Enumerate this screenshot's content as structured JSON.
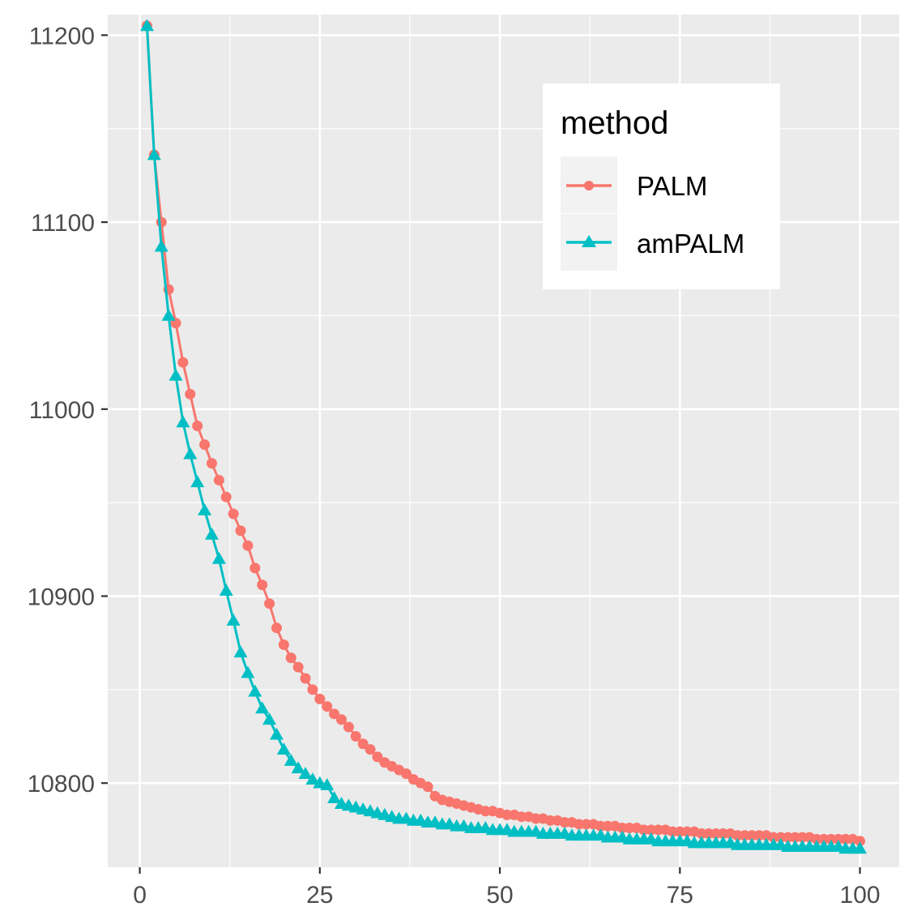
{
  "chart_data": {
    "type": "line",
    "title": "",
    "xlabel": "",
    "ylabel": "",
    "xlim": [
      -4.45,
      105.45
    ],
    "ylim": [
      10755,
      11211
    ],
    "x_ticks": [
      0,
      25,
      50,
      75,
      100
    ],
    "x_tick_labels": [
      "0",
      "25",
      "50",
      "75",
      "100"
    ],
    "y_ticks": [
      10800,
      10900,
      11000,
      11100,
      11200
    ],
    "y_tick_labels": [
      "10800",
      "10900",
      "11000",
      "11100",
      "11200"
    ],
    "grid": true,
    "legend": {
      "title": "method",
      "placement": "top-right"
    },
    "series": [
      {
        "name": "PALM",
        "color": "#F8766D",
        "marker": "circle",
        "x": [
          1,
          2,
          3,
          4,
          5,
          6,
          7,
          8,
          9,
          10,
          11,
          12,
          13,
          14,
          15,
          16,
          17,
          18,
          19,
          20,
          21,
          22,
          23,
          24,
          25,
          26,
          27,
          28,
          29,
          30,
          31,
          32,
          33,
          34,
          35,
          36,
          37,
          38,
          39,
          40,
          41,
          42,
          43,
          44,
          45,
          46,
          47,
          48,
          49,
          50,
          51,
          52,
          53,
          54,
          55,
          56,
          57,
          58,
          59,
          60,
          61,
          62,
          63,
          64,
          65,
          66,
          67,
          68,
          69,
          70,
          71,
          72,
          73,
          74,
          75,
          76,
          77,
          78,
          79,
          80,
          81,
          82,
          83,
          84,
          85,
          86,
          87,
          88,
          89,
          90,
          91,
          92,
          93,
          94,
          95,
          96,
          97,
          98,
          99,
          100
        ],
        "y": [
          11205,
          11136,
          11100,
          11064,
          11046,
          11025,
          11008,
          10991,
          10981,
          10971,
          10962,
          10953,
          10944,
          10935,
          10927,
          10915,
          10906,
          10896,
          10883,
          10874,
          10867,
          10862,
          10856,
          10850,
          10845,
          10841,
          10837,
          10834,
          10830,
          10825,
          10821,
          10818,
          10814,
          10811,
          10809,
          10807,
          10805,
          10802,
          10800,
          10798,
          10793,
          10791,
          10790,
          10789,
          10788,
          10787,
          10786,
          10785,
          10785,
          10784,
          10783,
          10783,
          10782,
          10782,
          10781,
          10781,
          10780,
          10780,
          10779,
          10779,
          10778,
          10778,
          10778,
          10777,
          10777,
          10777,
          10776,
          10776,
          10776,
          10775,
          10775,
          10775,
          10775,
          10774,
          10774,
          10774,
          10774,
          10773,
          10773,
          10773,
          10773,
          10773,
          10772,
          10772,
          10772,
          10772,
          10772,
          10771,
          10771,
          10771,
          10771,
          10771,
          10771,
          10770,
          10770,
          10770,
          10770,
          10770,
          10770,
          10769
        ]
      },
      {
        "name": "amPALM",
        "color": "#00BFC4",
        "marker": "triangle",
        "x": [
          1,
          2,
          3,
          4,
          5,
          6,
          7,
          8,
          9,
          10,
          11,
          12,
          13,
          14,
          15,
          16,
          17,
          18,
          19,
          20,
          21,
          22,
          23,
          24,
          25,
          26,
          27,
          28,
          29,
          30,
          31,
          32,
          33,
          34,
          35,
          36,
          37,
          38,
          39,
          40,
          41,
          42,
          43,
          44,
          45,
          46,
          47,
          48,
          49,
          50,
          51,
          52,
          53,
          54,
          55,
          56,
          57,
          58,
          59,
          60,
          61,
          62,
          63,
          64,
          65,
          66,
          67,
          68,
          69,
          70,
          71,
          72,
          73,
          74,
          75,
          76,
          77,
          78,
          79,
          80,
          81,
          82,
          83,
          84,
          85,
          86,
          87,
          88,
          89,
          90,
          91,
          92,
          93,
          94,
          95,
          96,
          97,
          98,
          99,
          100
        ],
        "y": [
          11205,
          11136,
          11087,
          11050,
          11018,
          10993,
          10976,
          10961,
          10946,
          10933,
          10920,
          10903,
          10887,
          10870,
          10859,
          10849,
          10840,
          10834,
          10826,
          10818,
          10812,
          10808,
          10805,
          10802,
          10800,
          10799,
          10792,
          10789,
          10788,
          10787,
          10786,
          10785,
          10784,
          10783,
          10782,
          10781,
          10781,
          10780,
          10780,
          10779,
          10779,
          10778,
          10778,
          10777,
          10777,
          10776,
          10776,
          10776,
          10775,
          10775,
          10775,
          10774,
          10774,
          10774,
          10774,
          10773,
          10773,
          10773,
          10773,
          10772,
          10772,
          10772,
          10772,
          10772,
          10771,
          10771,
          10771,
          10770,
          10770,
          10770,
          10770,
          10769,
          10769,
          10769,
          10769,
          10769,
          10768,
          10768,
          10768,
          10768,
          10768,
          10768,
          10767,
          10767,
          10767,
          10767,
          10767,
          10767,
          10767,
          10766,
          10766,
          10766,
          10766,
          10766,
          10766,
          10766,
          10766,
          10765,
          10765,
          10765
        ]
      }
    ]
  }
}
